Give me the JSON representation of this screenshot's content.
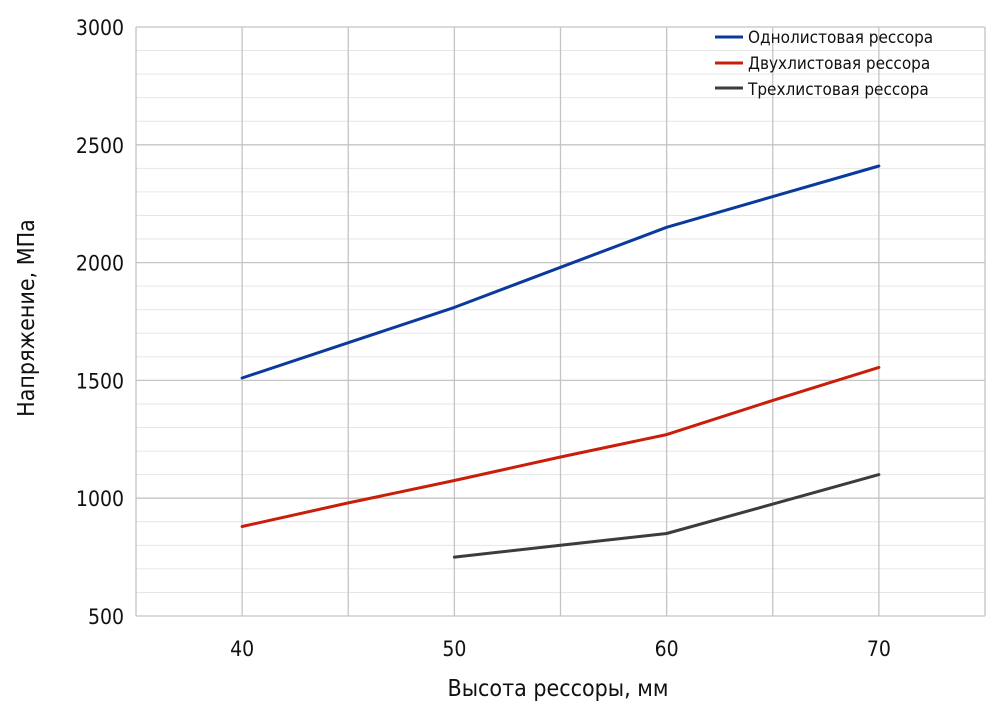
{
  "chart_data": {
    "type": "line",
    "xlabel": "Высота рессоры, мм",
    "ylabel": "Напряжение, МПа",
    "xlim": [
      35,
      75
    ],
    "ylim": [
      500,
      3000
    ],
    "x_ticks": [
      40,
      50,
      60,
      70
    ],
    "y_ticks": [
      500,
      1000,
      1500,
      2000,
      2500,
      3000
    ],
    "grid": true,
    "legend_position": "top-right",
    "series": [
      {
        "name": "Однолистовая рессора",
        "color": "#0a3a9c",
        "points": [
          [
            40,
            1510
          ],
          [
            45,
            1660
          ],
          [
            50,
            1810
          ],
          [
            55,
            1980
          ],
          [
            60,
            2150
          ],
          [
            65,
            2280
          ],
          [
            70,
            2410
          ]
        ]
      },
      {
        "name": "Двухлистовая рессора",
        "color": "#c81e0a",
        "points": [
          [
            40,
            880
          ],
          [
            45,
            980
          ],
          [
            50,
            1075
          ],
          [
            55,
            1175
          ],
          [
            60,
            1270
          ],
          [
            65,
            1415
          ],
          [
            70,
            1555
          ]
        ]
      },
      {
        "name": "Трехлистовая рессора",
        "color": "#3c3c3c",
        "points": [
          [
            50,
            750
          ],
          [
            55,
            800
          ],
          [
            60,
            850
          ],
          [
            65,
            975
          ],
          [
            70,
            1100
          ]
        ]
      }
    ]
  }
}
